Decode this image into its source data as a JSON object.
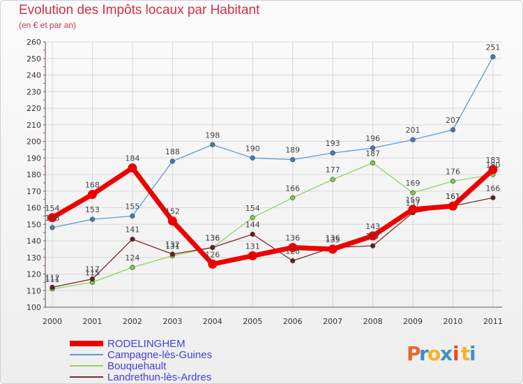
{
  "chart_data": {
    "type": "line",
    "title": "Evolution des Impôts locaux par Habitant",
    "subtitle": "(en € et par an)",
    "categories": [
      "2000",
      "2001",
      "2002",
      "2003",
      "2004",
      "2005",
      "2006",
      "2007",
      "2008",
      "2009",
      "2010",
      "2011"
    ],
    "ylim": [
      100,
      260
    ],
    "yticks": [
      100,
      110,
      120,
      130,
      140,
      150,
      160,
      170,
      180,
      190,
      200,
      210,
      220,
      230,
      240,
      250,
      260
    ],
    "grid": true,
    "legend_position": "bottom-left",
    "series": [
      {
        "name": "Campagne-lès-Guines",
        "color": "#5b9bd5",
        "point_color": "#3f7ec0",
        "values": [
          148,
          153,
          155,
          188,
          198,
          190,
          189,
          193,
          196,
          201,
          207,
          251
        ]
      },
      {
        "name": "Bouquehault",
        "color": "#8fd460",
        "point_color": "#7ccf45",
        "values": [
          111,
          115,
          124,
          131,
          136,
          154,
          166,
          177,
          187,
          169,
          176,
          180
        ]
      },
      {
        "name": "Landrethun-lès-Ardres",
        "color": "#7a2a2a",
        "point_color": "#6b1e1e",
        "values": [
          112,
          117,
          141,
          132,
          136,
          144,
          128,
          136,
          137,
          157,
          161,
          166
        ]
      },
      {
        "name": "RODELINGHEM",
        "color": "#ee0000",
        "point_color": "#ee0000",
        "values": [
          154,
          168,
          184,
          152,
          126,
          131,
          136,
          135,
          143,
          159,
          161,
          183
        ]
      }
    ]
  },
  "brand": {
    "letters": [
      "P",
      "r",
      "o",
      "x",
      "i",
      "t",
      "i"
    ],
    "colors": [
      "#e8682b",
      "#3a8fd8",
      "#f2b520",
      "#3a8fd8",
      "#e04a2b",
      "#f2b520",
      "#3a8fd8"
    ]
  }
}
